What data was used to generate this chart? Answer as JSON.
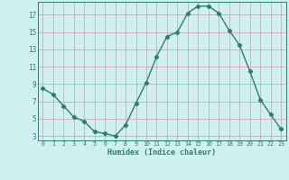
{
  "xlabel": "Humidex (Indice chaleur)",
  "x": [
    0,
    1,
    2,
    3,
    4,
    5,
    6,
    7,
    8,
    9,
    10,
    11,
    12,
    13,
    14,
    15,
    16,
    17,
    18,
    19,
    20,
    21,
    22,
    23
  ],
  "y": [
    8.5,
    7.8,
    6.5,
    5.2,
    4.7,
    3.5,
    3.3,
    3.0,
    4.3,
    6.8,
    9.2,
    12.2,
    14.5,
    15.0,
    17.2,
    18.0,
    18.0,
    17.2,
    15.2,
    13.5,
    10.5,
    7.2,
    5.5,
    3.8
  ],
  "line_color": "#2e7d6e",
  "marker": "D",
  "marker_size": 2.2,
  "bg_color": "#cff0f0",
  "grid_color": "#c8a0a0",
  "tick_color": "#2e7d6e",
  "label_color": "#2e7d6e",
  "ylim": [
    2.5,
    18.5
  ],
  "xlim": [
    -0.5,
    23.5
  ],
  "yticks": [
    3,
    5,
    7,
    9,
    11,
    13,
    15,
    17
  ],
  "xticks": [
    0,
    1,
    2,
    3,
    4,
    5,
    6,
    7,
    8,
    9,
    10,
    11,
    12,
    13,
    14,
    15,
    16,
    17,
    18,
    19,
    20,
    21,
    22,
    23
  ]
}
